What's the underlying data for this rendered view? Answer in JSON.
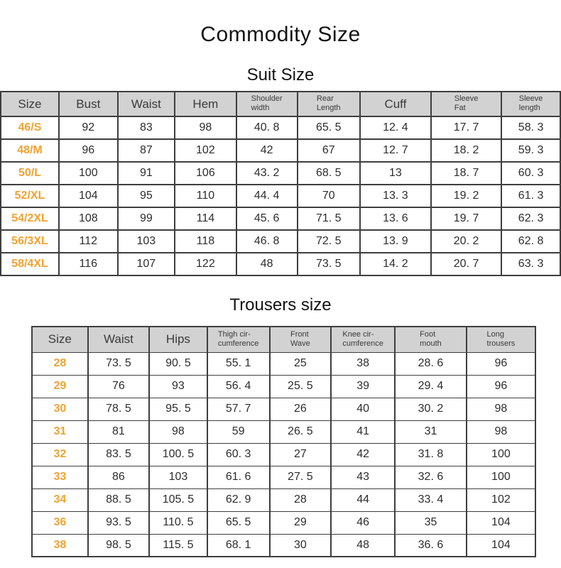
{
  "page": {
    "title": "Commodity Size"
  },
  "colors": {
    "accent_orange": "#f0a232",
    "header_bg": "#d2d2d2",
    "header_text": "#3a3a3a",
    "cell_text": "#2d2d2d",
    "border": "#3e3e3e"
  },
  "suit_table": {
    "title": "Suit Size",
    "columns": [
      {
        "key": "size",
        "label": "Size"
      },
      {
        "key": "bust",
        "label": "Bust"
      },
      {
        "key": "waist",
        "label": "Waist"
      },
      {
        "key": "hem",
        "label": "Hem"
      },
      {
        "key": "shoulder-width",
        "label": "Shoulder width",
        "lines": [
          "Shoulder",
          "width"
        ]
      },
      {
        "key": "rear-length",
        "label": "Rear Length",
        "lines": [
          "Rear",
          "Length"
        ]
      },
      {
        "key": "cuff",
        "label": "Cuff"
      },
      {
        "key": "sleeve-fat",
        "label": "Sleeve Fat",
        "lines": [
          "Sleeve",
          "Fat"
        ]
      },
      {
        "key": "sleeve-length",
        "label": "Sleeve length",
        "lines": [
          "Sleeve",
          "length"
        ]
      }
    ],
    "rows": [
      [
        "46/S",
        "92",
        "83",
        "98",
        "40. 8",
        "65. 5",
        "12. 4",
        "17. 7",
        "58. 3"
      ],
      [
        "48/M",
        "96",
        "87",
        "102",
        "42",
        "67",
        "12. 7",
        "18. 2",
        "59. 3"
      ],
      [
        "50/L",
        "100",
        "91",
        "106",
        "43. 2",
        "68. 5",
        "13",
        "18. 7",
        "60. 3"
      ],
      [
        "52/XL",
        "104",
        "95",
        "110",
        "44. 4",
        "70",
        "13. 3",
        "19. 2",
        "61. 3"
      ],
      [
        "54/2XL",
        "108",
        "99",
        "114",
        "45. 6",
        "71. 5",
        "13. 6",
        "19. 7",
        "62. 3"
      ],
      [
        "56/3XL",
        "112",
        "103",
        "118",
        "46. 8",
        "72. 5",
        "13. 9",
        "20. 2",
        "62. 8"
      ],
      [
        "58/4XL",
        "116",
        "107",
        "122",
        "48",
        "73. 5",
        "14. 2",
        "20. 7",
        "63. 3"
      ]
    ]
  },
  "trousers_table": {
    "title": "Trousers size",
    "columns": [
      {
        "key": "size",
        "label": "Size"
      },
      {
        "key": "waist",
        "label": "Waist"
      },
      {
        "key": "hips",
        "label": "Hips"
      },
      {
        "key": "thigh-circumference",
        "label": "Thigh circumference",
        "lines": [
          "Thigh cir-",
          "cumference"
        ]
      },
      {
        "key": "front-wave",
        "label": "Front Wave",
        "lines": [
          "Front",
          "Wave"
        ]
      },
      {
        "key": "knee-circumference",
        "label": "Knee circumference",
        "lines": [
          "Knee cir-",
          "cumference"
        ]
      },
      {
        "key": "foot-mouth",
        "label": "Foot mouth",
        "lines": [
          "Foot",
          "mouth"
        ]
      },
      {
        "key": "long-trousers",
        "label": "Long trousers",
        "lines": [
          "Long",
          "trousers"
        ]
      }
    ],
    "rows": [
      [
        "28",
        "73. 5",
        "90. 5",
        "55. 1",
        "25",
        "38",
        "28. 6",
        "96"
      ],
      [
        "29",
        "76",
        "93",
        "56. 4",
        "25. 5",
        "39",
        "29. 4",
        "96"
      ],
      [
        "30",
        "78. 5",
        "95. 5",
        "57. 7",
        "26",
        "40",
        "30. 2",
        "98"
      ],
      [
        "31",
        "81",
        "98",
        "59",
        "26. 5",
        "41",
        "31",
        "98"
      ],
      [
        "32",
        "83. 5",
        "100. 5",
        "60. 3",
        "27",
        "42",
        "31. 8",
        "100"
      ],
      [
        "33",
        "86",
        "103",
        "61. 6",
        "27. 5",
        "43",
        "32. 6",
        "100"
      ],
      [
        "34",
        "88. 5",
        "105. 5",
        "62. 9",
        "28",
        "44",
        "33. 4",
        "102"
      ],
      [
        "36",
        "93. 5",
        "110. 5",
        "65. 5",
        "29",
        "46",
        "35",
        "104"
      ],
      [
        "38",
        "98. 5",
        "115. 5",
        "68. 1",
        "30",
        "48",
        "36. 6",
        "104"
      ]
    ]
  },
  "chart_data": [
    {
      "type": "table",
      "title": "Suit Size",
      "columns": [
        "Size",
        "Bust",
        "Waist",
        "Hem",
        "Shoulder width",
        "Rear Length",
        "Cuff",
        "Sleeve Fat",
        "Sleeve length"
      ],
      "rows": [
        [
          "46/S",
          92,
          83,
          98,
          40.8,
          65.5,
          12.4,
          17.7,
          58.3
        ],
        [
          "48/M",
          96,
          87,
          102,
          42,
          67,
          12.7,
          18.2,
          59.3
        ],
        [
          "50/L",
          100,
          91,
          106,
          43.2,
          68.5,
          13,
          18.7,
          60.3
        ],
        [
          "52/XL",
          104,
          95,
          110,
          44.4,
          70,
          13.3,
          19.2,
          61.3
        ],
        [
          "54/2XL",
          108,
          99,
          114,
          45.6,
          71.5,
          13.6,
          19.7,
          62.3
        ],
        [
          "56/3XL",
          112,
          103,
          118,
          46.8,
          72.5,
          13.9,
          20.2,
          62.8
        ],
        [
          "58/4XL",
          116,
          107,
          122,
          48,
          73.5,
          14.2,
          20.7,
          63.3
        ]
      ]
    },
    {
      "type": "table",
      "title": "Trousers size",
      "columns": [
        "Size",
        "Waist",
        "Hips",
        "Thigh circumference",
        "Front Wave",
        "Knee circumference",
        "Foot mouth",
        "Long trousers"
      ],
      "rows": [
        [
          28,
          73.5,
          90.5,
          55.1,
          25,
          38,
          28.6,
          96
        ],
        [
          29,
          76,
          93,
          56.4,
          25.5,
          39,
          29.4,
          96
        ],
        [
          30,
          78.5,
          95.5,
          57.7,
          26,
          40,
          30.2,
          98
        ],
        [
          31,
          81,
          98,
          59,
          26.5,
          41,
          31,
          98
        ],
        [
          32,
          83.5,
          100.5,
          60.3,
          27,
          42,
          31.8,
          100
        ],
        [
          33,
          86,
          103,
          61.6,
          27.5,
          43,
          32.6,
          100
        ],
        [
          34,
          88.5,
          105.5,
          62.9,
          28,
          44,
          33.4,
          102
        ],
        [
          36,
          93.5,
          110.5,
          65.5,
          29,
          46,
          35,
          104
        ],
        [
          38,
          98.5,
          115.5,
          68.1,
          30,
          48,
          36.6,
          104
        ]
      ]
    }
  ]
}
